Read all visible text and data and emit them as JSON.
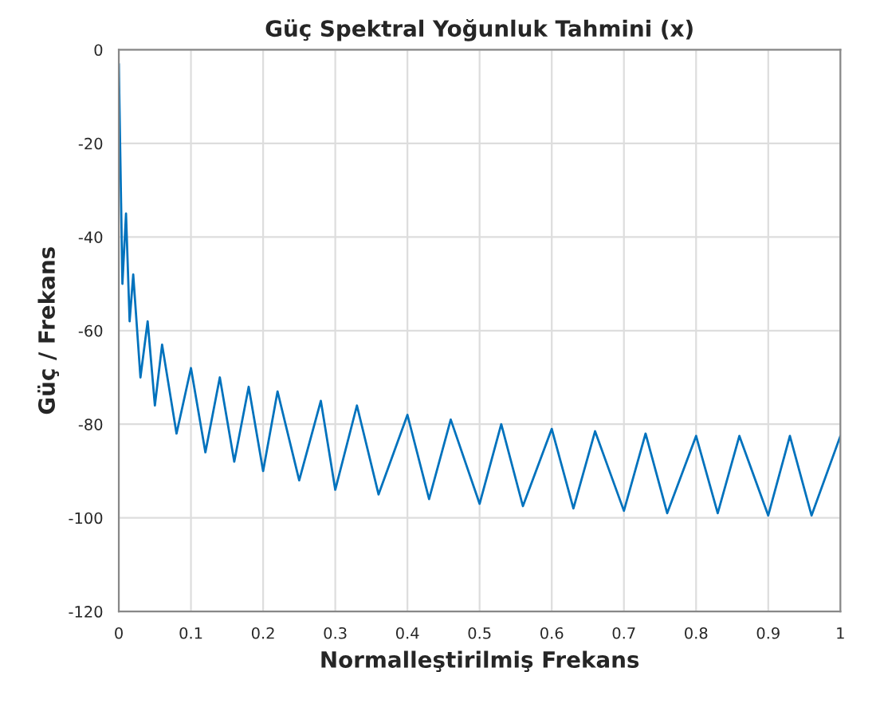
{
  "chart_data": {
    "type": "line",
    "title": "Güç Spektral Yoğunluk Tahmini (x)",
    "xlabel": "Normalleştirilmiş Frekans",
    "ylabel": "Güç / Frekans",
    "x": [
      0,
      0.005,
      0.01,
      0.015,
      0.02,
      0.03,
      0.04,
      0.05,
      0.06,
      0.08,
      0.1,
      0.12,
      0.14,
      0.16,
      0.18,
      0.2,
      0.22,
      0.25,
      0.28,
      0.3,
      0.33,
      0.36,
      0.4,
      0.43,
      0.46,
      0.5,
      0.53,
      0.56,
      0.6,
      0.63,
      0.66,
      0.7,
      0.73,
      0.76,
      0.8,
      0.83,
      0.86,
      0.9,
      0.93,
      0.96,
      1.0
    ],
    "series": [
      {
        "color": "#0072bd",
        "values": [
          -3,
          -50,
          -35,
          -58,
          -48,
          -70,
          -58,
          -76,
          -63,
          -82,
          -68,
          -86,
          -70,
          -88,
          -72,
          -90,
          -73,
          -92,
          -75,
          -94,
          -76,
          -95,
          -78,
          -96,
          -79,
          -97,
          -80,
          -97.5,
          -81,
          -98,
          -81.5,
          -98.5,
          -82,
          -99,
          -82.5,
          -99,
          -82.5,
          -99.5,
          -82.5,
          -99.5,
          -82.5
        ]
      }
    ],
    "xlim": [
      0,
      1
    ],
    "xticks": [
      0,
      0.1,
      0.2,
      0.3,
      0.4,
      0.5,
      0.6,
      0.7,
      0.8,
      0.9,
      1
    ],
    "ylim": [
      -120,
      0
    ],
    "yticks": [
      -120,
      -100,
      -80,
      -60,
      -40,
      -20,
      0
    ],
    "grid": true
  }
}
